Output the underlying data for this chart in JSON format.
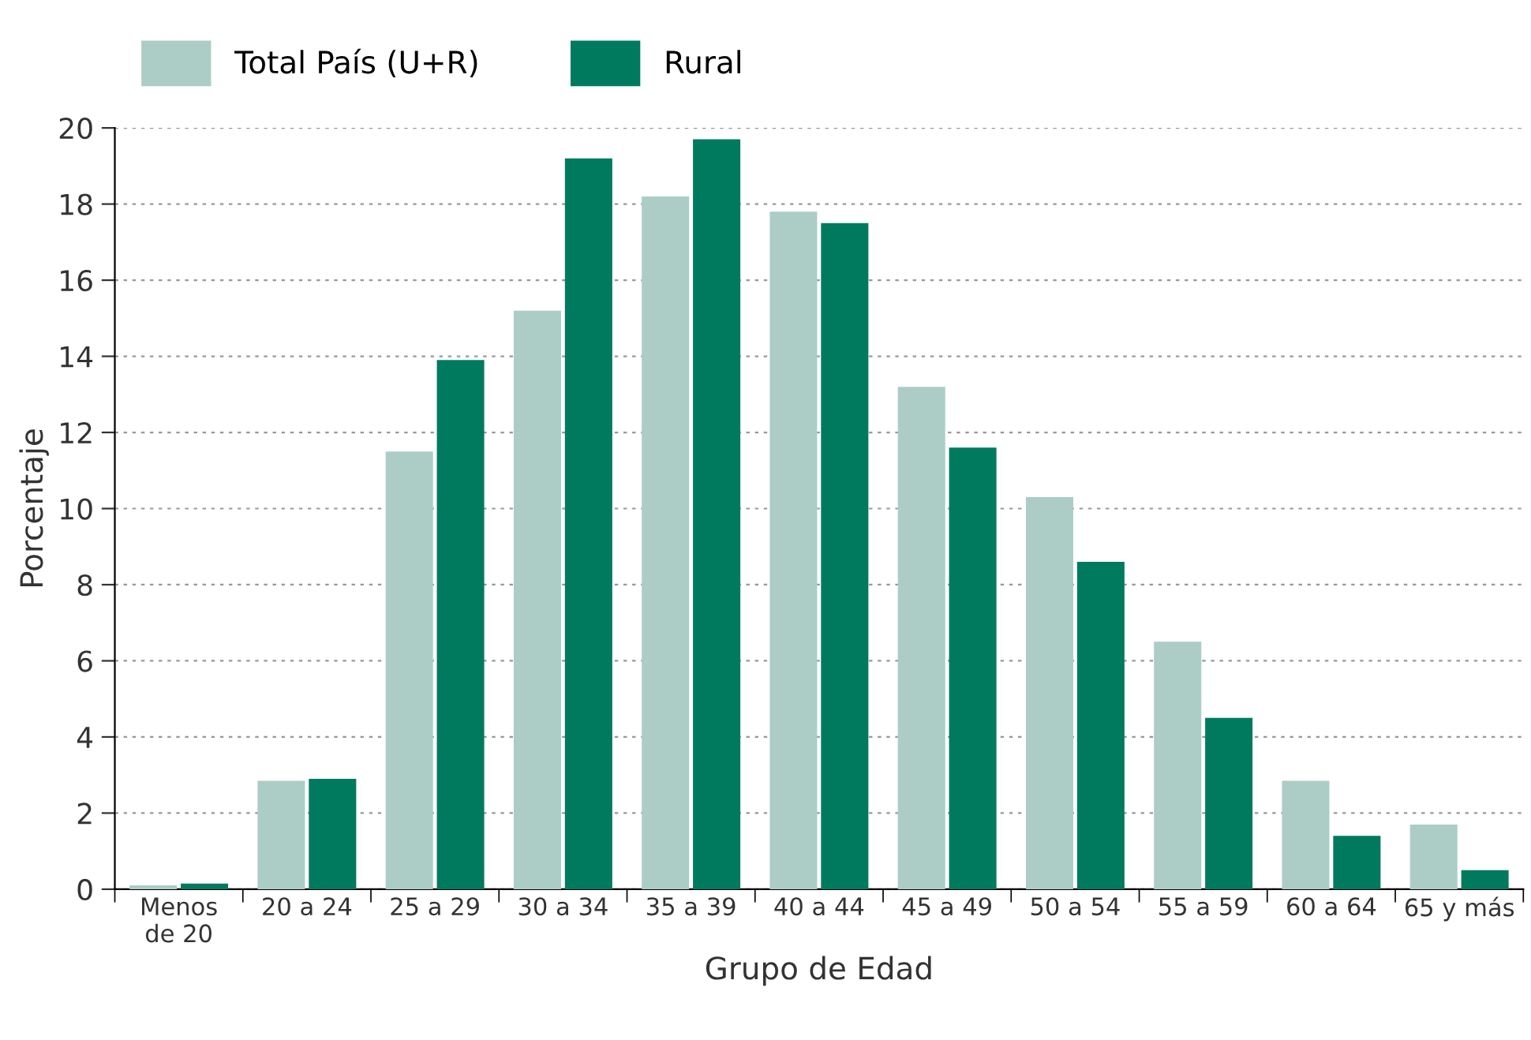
{
  "chart_data": {
    "type": "bar",
    "xlabel": "Grupo de Edad",
    "ylabel": "Porcentaje",
    "categories": [
      "Menos\nde 20",
      "20 a 24",
      "25 a 29",
      "30 a 34",
      "35 a 39",
      "40 a 44",
      "45 a 49",
      "50 a 54",
      "55 a 59",
      "60 a 64",
      "65 y más"
    ],
    "series": [
      {
        "name": "Total País (U+R)",
        "color": "#abcdc5",
        "values": [
          0.1,
          2.85,
          11.5,
          15.2,
          18.2,
          17.8,
          13.2,
          10.3,
          6.5,
          2.85,
          1.7
        ]
      },
      {
        "name": "Rural",
        "color": "#007a5e",
        "values": [
          0.15,
          2.9,
          13.9,
          19.2,
          19.7,
          17.5,
          11.6,
          8.6,
          4.5,
          1.4,
          0.5
        ]
      }
    ],
    "ylim": [
      0,
      20
    ],
    "yticks": [
      0,
      2,
      4,
      6,
      8,
      10,
      12,
      14,
      16,
      18,
      20
    ],
    "grid": "y",
    "legend": "top left"
  }
}
